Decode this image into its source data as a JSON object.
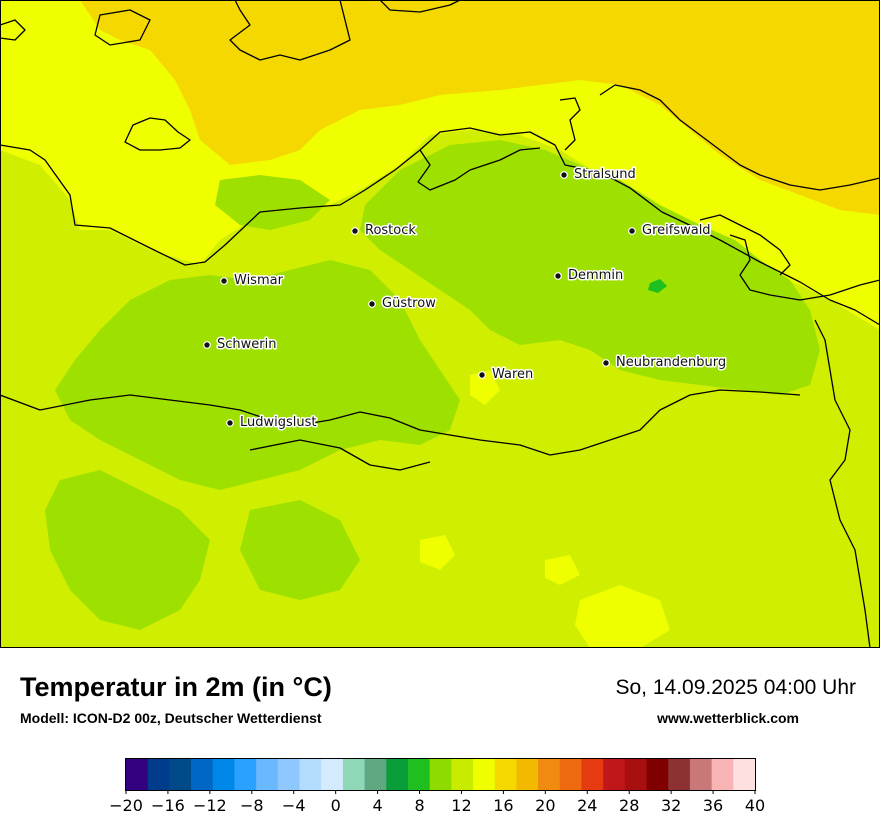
{
  "map": {
    "cities": [
      {
        "name": "Stralsund"
      },
      {
        "name": "Rostock"
      },
      {
        "name": "Greifswald"
      },
      {
        "name": "Wismar"
      },
      {
        "name": "Demmin"
      },
      {
        "name": "Güstrow"
      },
      {
        "name": "Schwerin"
      },
      {
        "name": "Neubrandenburg"
      },
      {
        "name": "Waren"
      },
      {
        "name": "Ludwigslust"
      }
    ]
  },
  "footer": {
    "title": "Temperatur in 2m (in °C)",
    "subtitle": "Modell: ICON-D2 00z, Deutscher Wetterdienst",
    "datetime": "So, 14.09.2025 04:00 Uhr",
    "website": "www.wetterblick.com"
  },
  "legend": {
    "ticks": [
      "−20",
      "−16",
      "−12",
      "−8",
      "−4",
      "0",
      "4",
      "8",
      "12",
      "16",
      "20",
      "24",
      "28",
      "32",
      "36",
      "40"
    ],
    "colors": [
      "#33007f",
      "#003c8c",
      "#004a8a",
      "#0068c4",
      "#0088e8",
      "#2aa0ff",
      "#6ab8ff",
      "#8ec8ff",
      "#b4dcff",
      "#d4ebff",
      "#8ed8b8",
      "#5fa882",
      "#0a9e3a",
      "#1fbf1f",
      "#8edb00",
      "#c8ec00",
      "#f0ff00",
      "#f4d800",
      "#f3b900",
      "#f08a10",
      "#ee6a10",
      "#e63a10",
      "#c01818",
      "#a81010",
      "#800000",
      "#8c3232",
      "#c87878",
      "#f8b4b4",
      "#ffe0e0"
    ]
  }
}
